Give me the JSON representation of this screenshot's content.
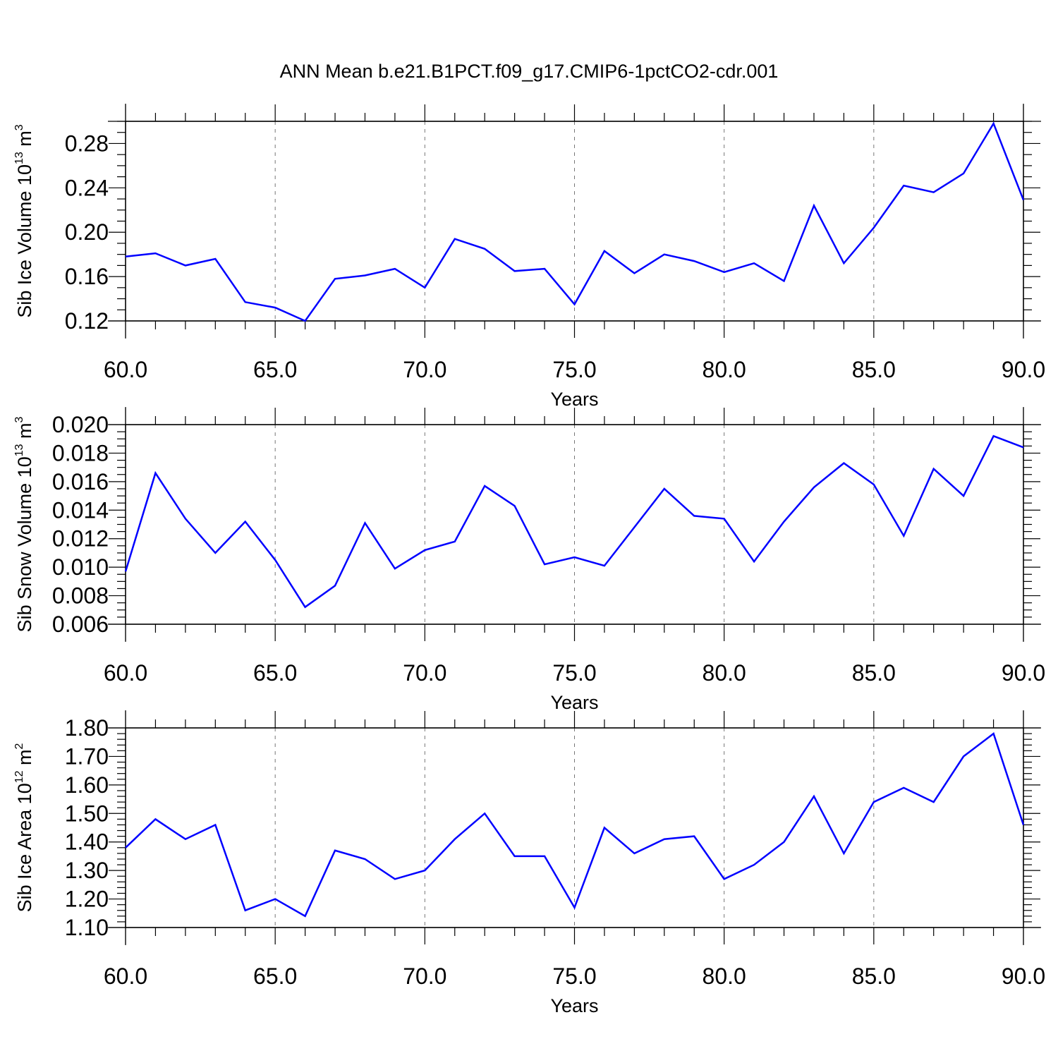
{
  "title": "ANN Mean b.e21.B1PCT.f09_g17.CMIP6-1pctCO2-cdr.001",
  "colors": {
    "line": "#0000ff",
    "axis": "#000000",
    "grid": "#777777"
  },
  "chart_data": [
    {
      "type": "line",
      "name": "ice-volume",
      "xlabel": "Years",
      "ylabel": {
        "base": "Sib Ice Volume 10",
        "exp": "13",
        "unit": " m",
        "unit_exp": "3"
      },
      "xlim": [
        60,
        90
      ],
      "ylim": [
        0.12,
        0.3
      ],
      "xticks": [
        60,
        65,
        70,
        75,
        80,
        85,
        90
      ],
      "xtick_labels": [
        "60.0",
        "65.0",
        "70.0",
        "75.0",
        "80.0",
        "85.0",
        "90.0"
      ],
      "yticks": [
        0.12,
        0.16,
        0.2,
        0.24,
        0.28
      ],
      "ytick_labels": [
        "0.12",
        "0.16",
        "0.20",
        "0.24",
        "0.28"
      ],
      "yminor_step": 0.01,
      "x": [
        60,
        61,
        62,
        63,
        64,
        65,
        66,
        67,
        68,
        69,
        70,
        71,
        72,
        73,
        74,
        75,
        76,
        77,
        78,
        79,
        80,
        81,
        82,
        83,
        84,
        85,
        86,
        87,
        88,
        89,
        90
      ],
      "values": [
        0.178,
        0.181,
        0.17,
        0.176,
        0.137,
        0.132,
        0.12,
        0.158,
        0.161,
        0.167,
        0.15,
        0.194,
        0.185,
        0.165,
        0.167,
        0.135,
        0.183,
        0.163,
        0.18,
        0.174,
        0.164,
        0.172,
        0.156,
        0.224,
        0.172,
        0.204,
        0.242,
        0.236,
        0.253,
        0.298,
        0.229
      ]
    },
    {
      "type": "line",
      "name": "snow-volume",
      "xlabel": "Years",
      "ylabel": {
        "base": "Sib Snow Volume 10",
        "exp": "13",
        "unit": " m",
        "unit_exp": "3"
      },
      "xlim": [
        60,
        90
      ],
      "ylim": [
        0.006,
        0.02
      ],
      "xticks": [
        60,
        65,
        70,
        75,
        80,
        85,
        90
      ],
      "xtick_labels": [
        "60.0",
        "65.0",
        "70.0",
        "75.0",
        "80.0",
        "85.0",
        "90.0"
      ],
      "yticks": [
        0.006,
        0.008,
        0.01,
        0.012,
        0.014,
        0.016,
        0.018,
        0.02
      ],
      "ytick_labels": [
        "0.006",
        "0.008",
        "0.010",
        "0.012",
        "0.014",
        "0.016",
        "0.018",
        "0.020"
      ],
      "yminor_step": 0.0005,
      "x": [
        60,
        61,
        62,
        63,
        64,
        65,
        66,
        67,
        68,
        69,
        70,
        71,
        72,
        73,
        74,
        75,
        76,
        77,
        78,
        79,
        80,
        81,
        82,
        83,
        84,
        85,
        86,
        87,
        88,
        89,
        90
      ],
      "values": [
        0.0097,
        0.0166,
        0.0134,
        0.011,
        0.0132,
        0.0105,
        0.0072,
        0.0087,
        0.0131,
        0.0099,
        0.0112,
        0.0118,
        0.0157,
        0.0143,
        0.0102,
        0.0107,
        0.0101,
        0.0128,
        0.0155,
        0.0136,
        0.0134,
        0.0104,
        0.0132,
        0.0156,
        0.0173,
        0.0158,
        0.0122,
        0.0169,
        0.015,
        0.0192,
        0.0184
      ]
    },
    {
      "type": "line",
      "name": "ice-area",
      "xlabel": "Years",
      "ylabel": {
        "base": "Sib Ice Area 10",
        "exp": "12",
        "unit": " m",
        "unit_exp": "2"
      },
      "xlim": [
        60,
        90
      ],
      "ylim": [
        1.1,
        1.8
      ],
      "xticks": [
        60,
        65,
        70,
        75,
        80,
        85,
        90
      ],
      "xtick_labels": [
        "60.0",
        "65.0",
        "70.0",
        "75.0",
        "80.0",
        "85.0",
        "90.0"
      ],
      "yticks": [
        1.1,
        1.2,
        1.3,
        1.4,
        1.5,
        1.6,
        1.7,
        1.8
      ],
      "ytick_labels": [
        "1.10",
        "1.20",
        "1.30",
        "1.40",
        "1.50",
        "1.60",
        "1.70",
        "1.80"
      ],
      "yminor_step": 0.02,
      "x": [
        60,
        61,
        62,
        63,
        64,
        65,
        66,
        67,
        68,
        69,
        70,
        71,
        72,
        73,
        74,
        75,
        76,
        77,
        78,
        79,
        80,
        81,
        82,
        83,
        84,
        85,
        86,
        87,
        88,
        89,
        90
      ],
      "values": [
        1.38,
        1.48,
        1.41,
        1.46,
        1.16,
        1.2,
        1.14,
        1.37,
        1.34,
        1.27,
        1.3,
        1.41,
        1.5,
        1.35,
        1.35,
        1.17,
        1.45,
        1.36,
        1.41,
        1.42,
        1.27,
        1.32,
        1.4,
        1.56,
        1.36,
        1.54,
        1.59,
        1.54,
        1.7,
        1.78,
        1.46
      ]
    }
  ]
}
